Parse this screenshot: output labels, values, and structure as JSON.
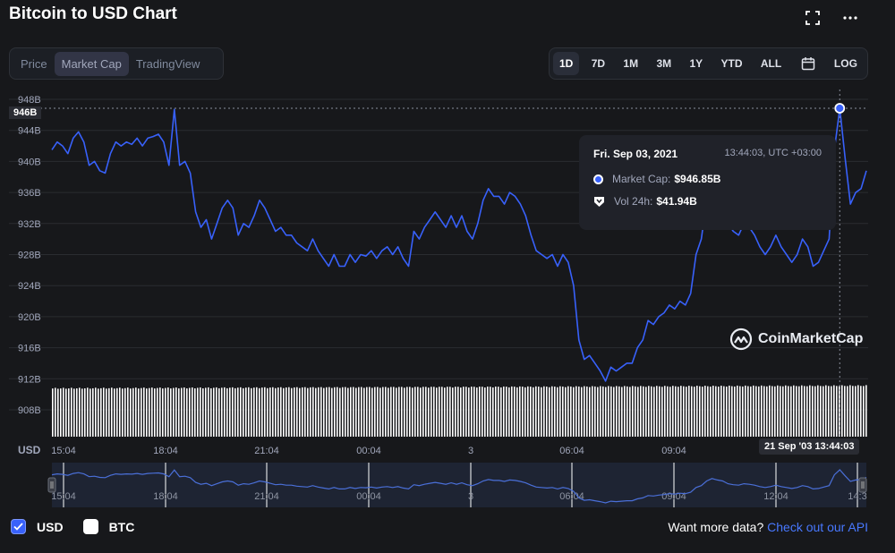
{
  "title": "Bitcoin to USD Chart",
  "icons": {
    "fullscreen": "fullscreen-icon",
    "more": "more-dots-icon",
    "calendar": "calendar-icon"
  },
  "tabs": [
    {
      "label": "Price",
      "active": false
    },
    {
      "label": "Market Cap",
      "active": true
    },
    {
      "label": "TradingView",
      "active": false
    }
  ],
  "ranges": [
    {
      "label": "1D",
      "active": true
    },
    {
      "label": "7D",
      "active": false
    },
    {
      "label": "1M",
      "active": false
    },
    {
      "label": "3M",
      "active": false
    },
    {
      "label": "1Y",
      "active": false
    },
    {
      "label": "YTD",
      "active": false
    },
    {
      "label": "ALL",
      "active": false
    }
  ],
  "log_label": "LOG",
  "tooltip": {
    "date": "Fri. Sep 03, 2021",
    "time": "13:44:03, UTC +03:00",
    "market_cap_label": "Market Cap:",
    "market_cap_value": "$946.85B",
    "vol_label": "Vol 24h:",
    "vol_value": "$41.94B"
  },
  "crosshair": {
    "y_label": "946B",
    "x_label": "21 Sep '03 13:44:03"
  },
  "axis_currency": "USD",
  "watermark": "CoinMarketCap",
  "footer": {
    "usd_label": "USD",
    "usd_checked": true,
    "btc_label": "BTC",
    "btc_checked": false,
    "more_text": "Want more data?",
    "api_link": "Check out our API"
  },
  "colors": {
    "line": "#3861fb",
    "background": "#17181b",
    "volume": "#ffffff",
    "link": "#4878ff"
  },
  "chart_data": {
    "type": "line",
    "ylabel": "",
    "xlabel": "",
    "y_ticks": [
      "948B",
      "944B",
      "940B",
      "936B",
      "932B",
      "928B",
      "924B",
      "920B",
      "916B",
      "912B",
      "908B"
    ],
    "x_ticks": [
      "15:04",
      "18:04",
      "21:04",
      "00:04",
      "3",
      "06:04",
      "09:04",
      "12:04"
    ],
    "navigator_ticks": [
      "15:04",
      "18:04",
      "21:04",
      "00:04",
      "3",
      "06:04",
      "09:04",
      "12:04",
      "14:3"
    ],
    "ylim": [
      906,
      949
    ],
    "series": [
      {
        "values": [
          941.5,
          942.5,
          942,
          941,
          943,
          943.8,
          942.5,
          939.5,
          940,
          938.8,
          938.5,
          941,
          942.5,
          942,
          942.5,
          942.2,
          943,
          942,
          943,
          943.2,
          943.5,
          942.5,
          939.5,
          946.7,
          939.5,
          940,
          938.5,
          933.5,
          931.5,
          932.5,
          930,
          932,
          934,
          935,
          934,
          930.5,
          932,
          931.5,
          933,
          935,
          934,
          932.5,
          931,
          931.5,
          930.5,
          930.5,
          929.5,
          929,
          928.5,
          930,
          928.5,
          927.5,
          926.5,
          928,
          926.5,
          926.5,
          928,
          927,
          928,
          927.8,
          928.5,
          927.5,
          928.5,
          929,
          928,
          929,
          927.5,
          926.5,
          931,
          930,
          931.5,
          932.5,
          933.5,
          932.5,
          931.5,
          933,
          931.5,
          933,
          931,
          930,
          932,
          935,
          936.5,
          935.5,
          935.5,
          934.5,
          936,
          935.5,
          934.5,
          933,
          930.5,
          928.5,
          928,
          927.5,
          928,
          926.5,
          928,
          927,
          924,
          917,
          914.5,
          915,
          914,
          913,
          911.7,
          913.5,
          913,
          913.5,
          914,
          914,
          916,
          917,
          919.5,
          919,
          920,
          920.5,
          921.5,
          921,
          922,
          921.5,
          923,
          928,
          930,
          935,
          937.5,
          936,
          935,
          932,
          931,
          930.5,
          932,
          931.5,
          930.5,
          929,
          928,
          929,
          930.5,
          929,
          928,
          927,
          928,
          930,
          929,
          926.5,
          927,
          928.5,
          930,
          941.5,
          946.85,
          940.5,
          934.5,
          936,
          936.5,
          938.8
        ]
      }
    ],
    "highlight": {
      "x": "Fri. Sep 03, 2021 13:44:03",
      "y": 946.85
    }
  }
}
